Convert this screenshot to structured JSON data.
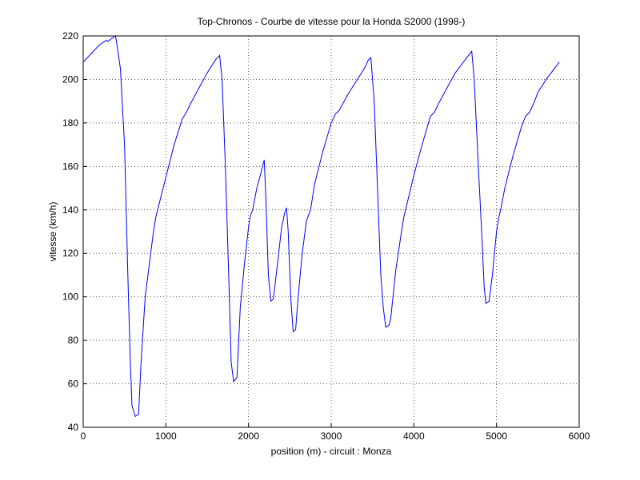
{
  "chart_data": {
    "type": "line",
    "title": "Top-Chronos - Courbe de vitesse pour la Honda S2000 (1998-)",
    "xlabel": "position (m) - circuit : Monza",
    "ylabel": "vitesse (km/h)",
    "x": [
      0,
      100,
      200,
      280,
      300,
      350,
      390,
      400,
      450,
      500,
      540,
      570,
      590,
      630,
      670,
      700,
      750,
      800,
      850,
      880,
      900,
      1000,
      1100,
      1200,
      1250,
      1300,
      1400,
      1500,
      1600,
      1650,
      1680,
      1720,
      1760,
      1790,
      1820,
      1860,
      1900,
      1950,
      2000,
      2020,
      2050,
      2100,
      2150,
      2190,
      2210,
      2240,
      2270,
      2300,
      2350,
      2400,
      2440,
      2460,
      2480,
      2510,
      2540,
      2570,
      2600,
      2650,
      2700,
      2750,
      2800,
      2900,
      3000,
      3050,
      3100,
      3200,
      3300,
      3400,
      3450,
      3480,
      3520,
      3560,
      3600,
      3630,
      3660,
      3700,
      3720,
      3780,
      3850,
      3880,
      3900,
      4000,
      4100,
      4200,
      4250,
      4300,
      4400,
      4500,
      4600,
      4680,
      4700,
      4730,
      4780,
      4820,
      4850,
      4870,
      4910,
      4950,
      5000,
      5030,
      5050,
      5100,
      5200,
      5300,
      5350,
      5400,
      5450,
      5500,
      5600,
      5700,
      5760
    ],
    "series": [
      {
        "color": "#0000ff",
        "values": [
          208,
          212,
          216,
          218,
          217.5,
          219,
          220,
          218,
          205,
          170,
          110,
          70,
          50,
          45,
          46,
          70,
          100,
          115,
          130,
          137,
          140,
          155,
          170,
          182,
          185,
          189,
          196,
          203,
          209,
          211,
          200,
          160,
          110,
          70,
          61,
          63,
          95,
          115,
          132,
          137,
          140,
          150,
          157,
          163,
          145,
          110,
          98,
          99,
          115,
          132,
          139,
          141,
          130,
          100,
          84,
          85,
          100,
          120,
          135,
          140,
          152,
          167,
          180,
          184,
          186,
          193,
          199,
          205,
          209,
          210,
          190,
          150,
          110,
          95,
          86,
          87,
          90,
          112,
          130,
          137,
          140,
          156,
          170,
          183,
          185,
          189,
          196,
          203,
          208,
          212,
          213,
          200,
          160,
          130,
          105,
          97,
          98,
          110,
          130,
          137,
          140,
          150,
          165,
          178,
          183,
          185,
          189,
          194,
          200,
          205,
          208
        ]
      }
    ],
    "xlim": [
      0,
      6000
    ],
    "xticks": [
      0,
      1000,
      2000,
      3000,
      4000,
      5000,
      6000
    ],
    "ylim": [
      40,
      220
    ],
    "yticks": [
      40,
      60,
      80,
      100,
      120,
      140,
      160,
      180,
      200,
      220
    ],
    "grid": true
  }
}
